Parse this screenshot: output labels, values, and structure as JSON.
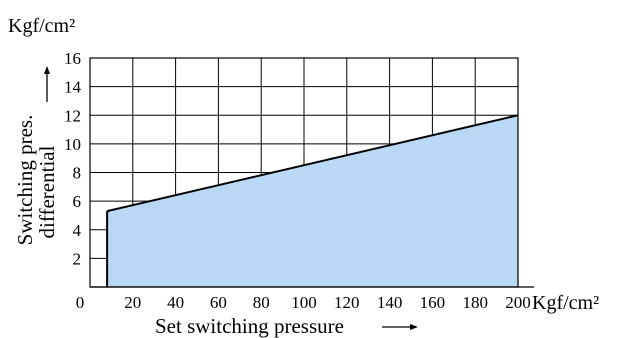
{
  "chart_data": {
    "type": "area",
    "y_unit": "Kgf/cm²",
    "x_unit": "Kgf/cm²",
    "xlabel": "Set switching pressure",
    "ylabel_lines": [
      "Switching pres.",
      "differential"
    ],
    "xlim": [
      0,
      200
    ],
    "ylim": [
      0,
      16
    ],
    "x_ticks": [
      "0",
      "20",
      "40",
      "60",
      "80",
      "100",
      "120",
      "140",
      "160",
      "180",
      "200"
    ],
    "y_ticks": [
      "2",
      "4",
      "6",
      "8",
      "10",
      "12",
      "14",
      "16"
    ],
    "grid": true,
    "fill_color": "#b8d8f4",
    "series": [
      {
        "x": [
          8,
          200
        ],
        "y": [
          5.3,
          12.0
        ]
      }
    ]
  }
}
